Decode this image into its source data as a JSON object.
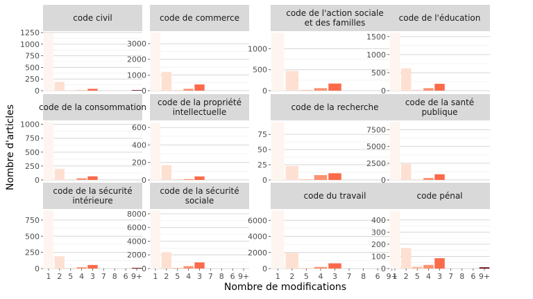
{
  "chart_data": {
    "type": "bar",
    "xlabel": "Nombre de modifications",
    "ylabel": "Nombre d'articles",
    "categories": [
      "1",
      "2",
      "5",
      "4",
      "3",
      "7",
      "8",
      "6",
      "9+"
    ],
    "bar_colors": [
      "#fff5f0",
      "#fee0d2",
      "#fcbba1",
      "#fc9272",
      "#fb6a4a",
      "#ef3b2c",
      "#cb181d",
      "#a50f15",
      "#67000d"
    ],
    "grid": true,
    "legend": "none",
    "panels": [
      {
        "title": [
          "code civil"
        ],
        "ylim": [
          0,
          1280
        ],
        "yticks": [
          0,
          250,
          500,
          750,
          1000,
          1250
        ],
        "values": [
          1230,
          190,
          0,
          8,
          40,
          0,
          0,
          0,
          12
        ]
      },
      {
        "title": [
          "code de commerce"
        ],
        "ylim": [
          0,
          3800
        ],
        "yticks": [
          0,
          1000,
          2000,
          3000
        ],
        "values": [
          3700,
          1200,
          25,
          120,
          400,
          0,
          0,
          0,
          0
        ]
      },
      {
        "title": [
          "code de l'action sociale",
          "et des familles"
        ],
        "ylim": [
          0,
          1420
        ],
        "yticks": [
          0,
          500,
          1000
        ],
        "values": [
          1380,
          470,
          15,
          60,
          170,
          0,
          0,
          0,
          0
        ]
      },
      {
        "title": [
          "code de l'éducation"
        ],
        "ylim": [
          0,
          1650
        ],
        "yticks": [
          0,
          500,
          1000,
          1500
        ],
        "values": [
          1600,
          620,
          15,
          70,
          190,
          0,
          0,
          0,
          0
        ]
      },
      {
        "title": [
          "code de la consommation"
        ],
        "ylim": [
          0,
          1070
        ],
        "yticks": [
          0,
          250,
          500,
          750,
          1000
        ],
        "values": [
          1040,
          200,
          5,
          30,
          65,
          0,
          0,
          0,
          0
        ]
      },
      {
        "title": [
          "code de la propriété",
          "intellectuelle"
        ],
        "ylim": [
          0,
          680
        ],
        "yticks": [
          0,
          200,
          400,
          600
        ],
        "values": [
          655,
          170,
          5,
          10,
          40,
          0,
          0,
          0,
          0
        ]
      },
      {
        "title": [
          "code de la recherche"
        ],
        "ylim": [
          0,
          98
        ],
        "yticks": [
          0,
          25,
          50,
          75
        ],
        "values": [
          95,
          23,
          1,
          8,
          11,
          0,
          0,
          0,
          0
        ]
      },
      {
        "title": [
          "code de la santé",
          "publique"
        ],
        "ylim": [
          0,
          8900
        ],
        "yticks": [
          0,
          2500,
          5000,
          7500
        ],
        "values": [
          8700,
          2400,
          50,
          300,
          850,
          0,
          0,
          0,
          0
        ]
      },
      {
        "title": [
          "code de la sécurité",
          "intérieure"
        ],
        "ylim": [
          0,
          920
        ],
        "yticks": [
          0,
          250,
          500,
          750
        ],
        "values": [
          900,
          190,
          5,
          20,
          55,
          0,
          0,
          0,
          10
        ]
      },
      {
        "title": [
          "code de la sécurité",
          "sociale"
        ],
        "ylim": [
          0,
          8700
        ],
        "yticks": [
          0,
          2000,
          4000,
          6000,
          8000
        ],
        "values": [
          8500,
          2400,
          100,
          350,
          900,
          0,
          0,
          0,
          0
        ]
      },
      {
        "title": [
          "code du travail"
        ],
        "ylim": [
          0,
          7400
        ],
        "yticks": [
          0,
          2000,
          4000,
          6000
        ],
        "values": [
          7200,
          1950,
          50,
          200,
          650,
          0,
          0,
          0,
          0
        ]
      },
      {
        "title": [
          "code pénal"
        ],
        "ylim": [
          0,
          490
        ],
        "yticks": [
          0,
          100,
          200,
          300,
          400
        ],
        "values": [
          475,
          170,
          15,
          30,
          85,
          0,
          0,
          0,
          10
        ]
      }
    ]
  }
}
